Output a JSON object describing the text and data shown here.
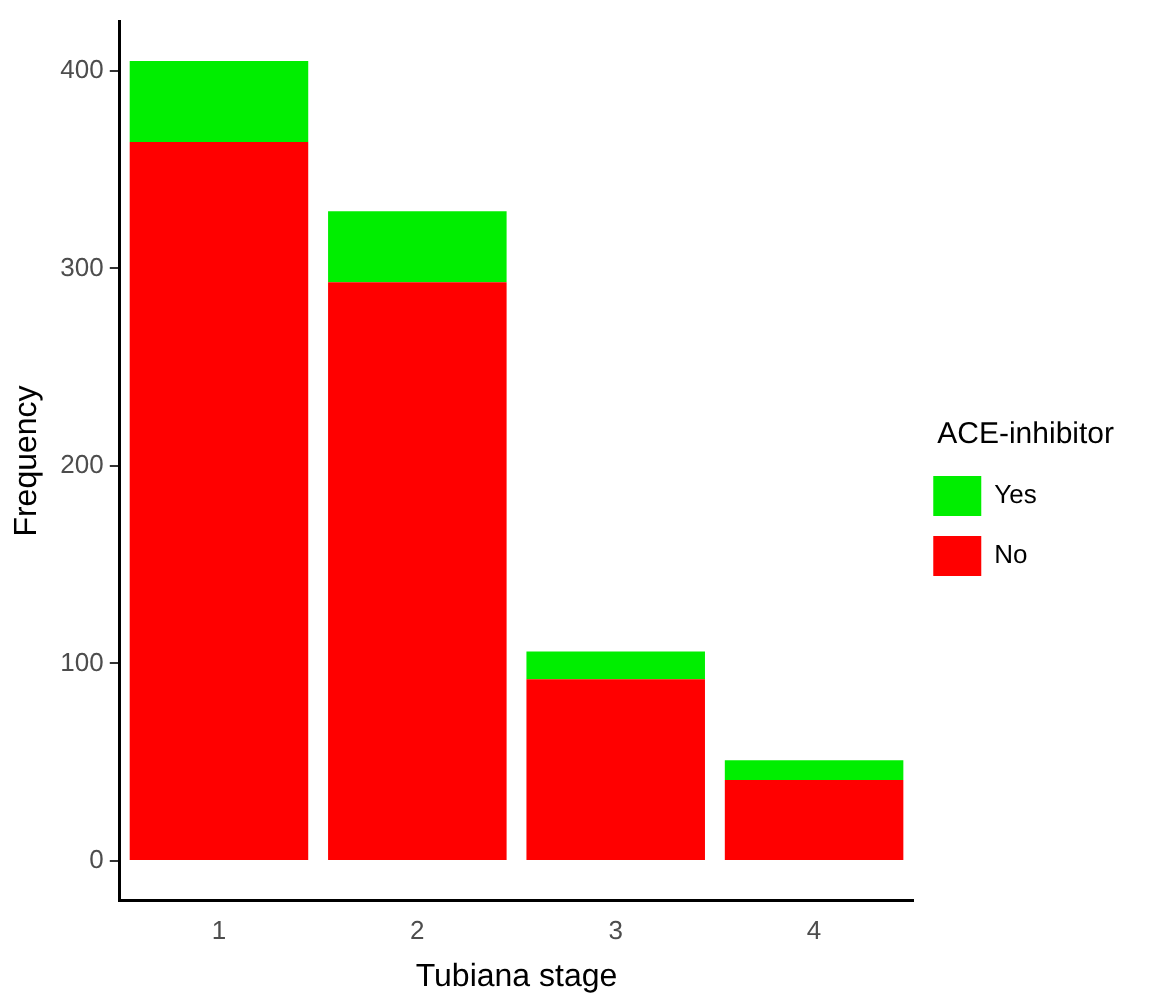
{
  "chart_data": {
    "type": "bar",
    "stacked": true,
    "xlabel": "Tubiana stage",
    "ylabel": "Frequency",
    "legend_title": "ACE-inhibitor",
    "legend": "right",
    "categories": [
      "1",
      "2",
      "3",
      "4"
    ],
    "series": [
      {
        "name": "No",
        "color": "#ff0000",
        "values": [
          364,
          293,
          92,
          41
        ]
      },
      {
        "name": "Yes",
        "color": "#00ee00",
        "values": [
          41,
          36,
          14,
          10
        ]
      }
    ],
    "ylim": [
      -20,
      425
    ],
    "yticks": [
      0,
      100,
      200,
      300,
      400
    ],
    "grid": false
  }
}
